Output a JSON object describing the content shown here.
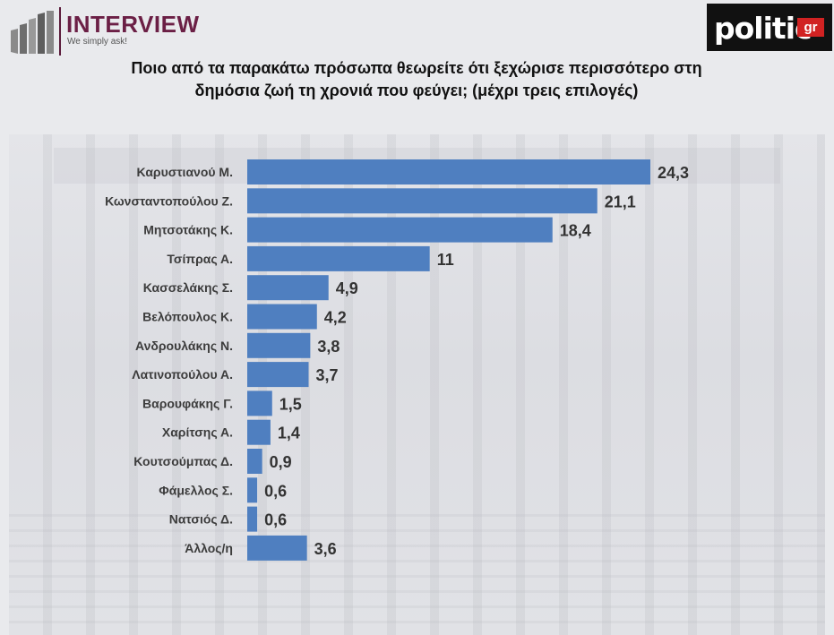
{
  "logos": {
    "interview_word": "INTERVIEW",
    "interview_tagline": "We simply ask!",
    "politic_word": "politic",
    "politic_suffix": "gr"
  },
  "colors": {
    "bar": "#4f7fc0",
    "brand_interview": "#6b1f45",
    "brand_politic_red": "#d12222"
  },
  "chart_data": {
    "type": "bar",
    "orientation": "horizontal",
    "title": "Ποιο από τα παρακάτω πρόσωπα θεωρείτε ότι ξεχώρισε περισσότερο στη δημόσια ζωή τη χρονιά που φεύγει; (μέχρι τρεις επιλογές)",
    "categories": [
      "Καρυστιανού Μ.",
      "Κωνσταντοπούλου Ζ.",
      "Μητσοτάκης Κ.",
      "Τσίπρας Α.",
      "Κασσελάκης Σ.",
      "Βελόπουλος Κ.",
      "Ανδρουλάκης Ν.",
      "Λατινοπούλου Α.",
      "Βαρουφάκης Γ.",
      "Χαρίτσης Α.",
      "Κουτσούμπας Δ.",
      "Φάμελλος Σ.",
      "Νατσιός Δ.",
      "Άλλος/η"
    ],
    "values": [
      24.3,
      21.1,
      18.4,
      11,
      4.9,
      4.2,
      3.8,
      3.7,
      1.5,
      1.4,
      0.9,
      0.6,
      0.6,
      3.6
    ],
    "value_labels": [
      "24,3",
      "21,1",
      "18,4",
      "11",
      "4,9",
      "4,2",
      "3,8",
      "3,7",
      "1,5",
      "1,4",
      "0,9",
      "0,6",
      "0,6",
      "3,6"
    ],
    "xlim": [
      0,
      24.3
    ],
    "grid": false,
    "legend": "none"
  }
}
